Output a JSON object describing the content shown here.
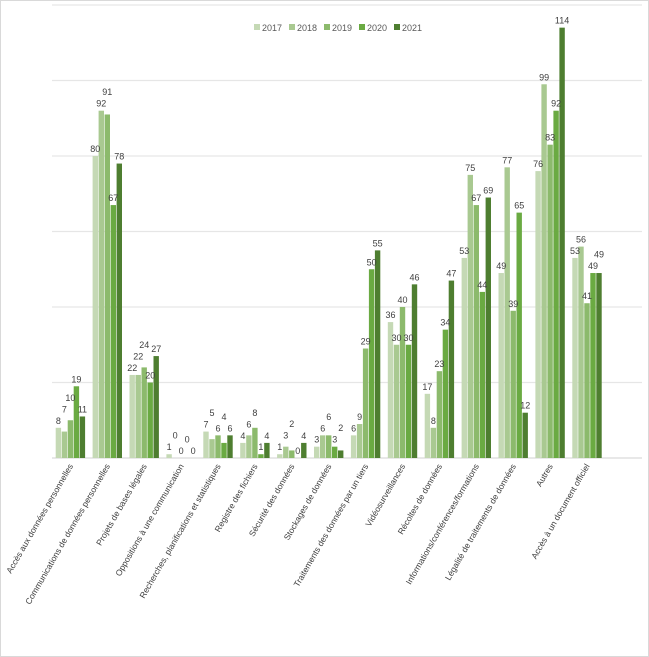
{
  "chart_data": {
    "type": "bar",
    "title": "",
    "xlabel": "",
    "ylabel": "",
    "ylim": [
      0,
      120
    ],
    "grid": true,
    "legend_position": "top",
    "data_labels": true,
    "categories": [
      "Accès aux données personnelles",
      "Communications de données personnelles",
      "Projets de bases légales",
      "Oppositions à une communication",
      "Recherches, planifications et statistiques",
      "Registre des fichiers",
      "Sécurité des données",
      "Stockages de données",
      "Traitements des données par un tiers",
      "Vidéosurveillances",
      "Récoltes de données",
      "Informations/conférences/formations",
      "Légalité de traitements de données",
      "Autres",
      "Accès à un document officiel"
    ],
    "series": [
      {
        "name": "2017",
        "color": "#c5d9b5",
        "values": [
          8,
          80,
          22,
          1,
          7,
          4,
          1,
          3,
          6,
          36,
          17,
          53,
          49,
          76,
          53
        ]
      },
      {
        "name": "2018",
        "color": "#a9c991",
        "values": [
          7,
          92,
          22,
          0,
          5,
          6,
          3,
          6,
          9,
          30,
          8,
          75,
          77,
          99,
          56
        ]
      },
      {
        "name": "2019",
        "color": "#8cba6c",
        "values": [
          10,
          91,
          24,
          0,
          6,
          8,
          2,
          6,
          29,
          40,
          23,
          67,
          39,
          83,
          41
        ]
      },
      {
        "name": "2020",
        "color": "#6aaa42",
        "values": [
          19,
          67,
          20,
          0,
          4,
          1,
          0,
          3,
          50,
          30,
          34,
          44,
          65,
          92,
          49
        ]
      },
      {
        "name": "2021",
        "color": "#4e7e30",
        "values": [
          11,
          78,
          27,
          0,
          6,
          4,
          4,
          2,
          55,
          46,
          47,
          69,
          12,
          114,
          49
        ]
      }
    ]
  }
}
